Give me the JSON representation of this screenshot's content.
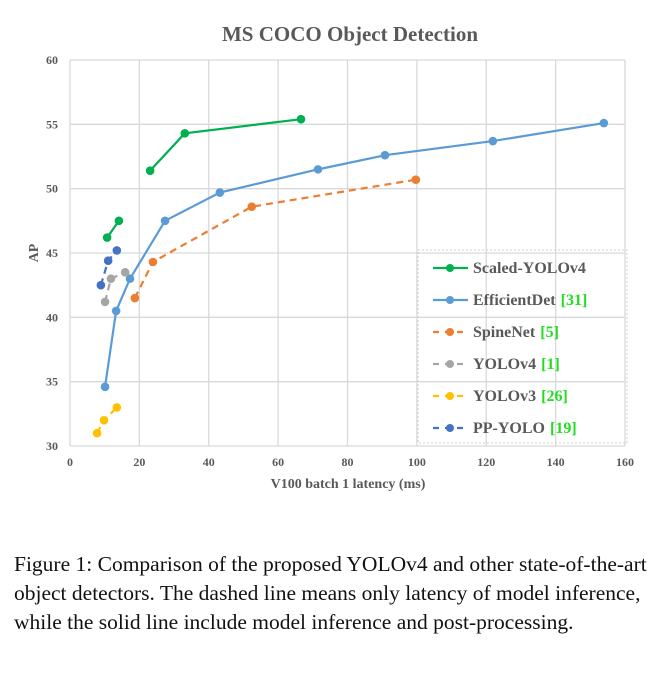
{
  "chart_data": {
    "type": "line",
    "title": "MS COCO Object Detection",
    "xlabel": "V100 batch 1 latency (ms)",
    "ylabel": "AP",
    "xlim": [
      0,
      160
    ],
    "ylim": [
      30,
      60
    ],
    "xticks": [
      0,
      20,
      40,
      60,
      80,
      100,
      120,
      140,
      160
    ],
    "yticks": [
      30,
      35,
      40,
      45,
      50,
      55,
      60
    ],
    "grid": true,
    "legend_position": "bottom-right",
    "series": [
      {
        "name": "Scaled-YOLOv4",
        "ref": "",
        "color": "#00b050",
        "dashed": false,
        "x": [
          10.7,
          14.1,
          null,
          23.1,
          33.1,
          66.6
        ],
        "y": [
          46.2,
          47.5,
          null,
          51.4,
          54.3,
          55.4
        ]
      },
      {
        "name": "EfficientDet",
        "ref": "[31]",
        "color": "#5b9bd5",
        "dashed": false,
        "x": [
          10.1,
          13.3,
          17.3,
          27.4,
          43.2,
          71.5,
          90.8,
          121.9,
          153.9
        ],
        "y": [
          34.6,
          40.5,
          43.0,
          47.5,
          49.7,
          51.5,
          52.6,
          53.7,
          55.1
        ]
      },
      {
        "name": "SpineNet",
        "ref": "[5]",
        "color": "#ed7d31",
        "dashed": true,
        "x": [
          18.7,
          23.9,
          52.4,
          99.7
        ],
        "y": [
          41.5,
          44.3,
          48.6,
          50.7
        ]
      },
      {
        "name": "YOLOv4",
        "ref": "[1]",
        "color": "#a5a5a5",
        "dashed": true,
        "x": [
          10.1,
          11.8,
          15.9
        ],
        "y": [
          41.2,
          43.0,
          43.5
        ]
      },
      {
        "name": "YOLOv3",
        "ref": "[26]",
        "color": "#ffc000",
        "dashed": true,
        "x": [
          7.8,
          9.8,
          13.5
        ],
        "y": [
          31.0,
          32.0,
          33.0
        ]
      },
      {
        "name": "PP-YOLO",
        "ref": "[19]",
        "color": "#4472c4",
        "dashed": true,
        "x": [
          8.9,
          11.0,
          13.5
        ],
        "y": [
          42.5,
          44.4,
          45.2
        ]
      }
    ]
  },
  "caption": "Figure 1: Comparison of the proposed YOLOv4 and other state-of-the-art object detectors.  The dashed line means only latency of model inference, while the solid line include model inference and post-processing."
}
